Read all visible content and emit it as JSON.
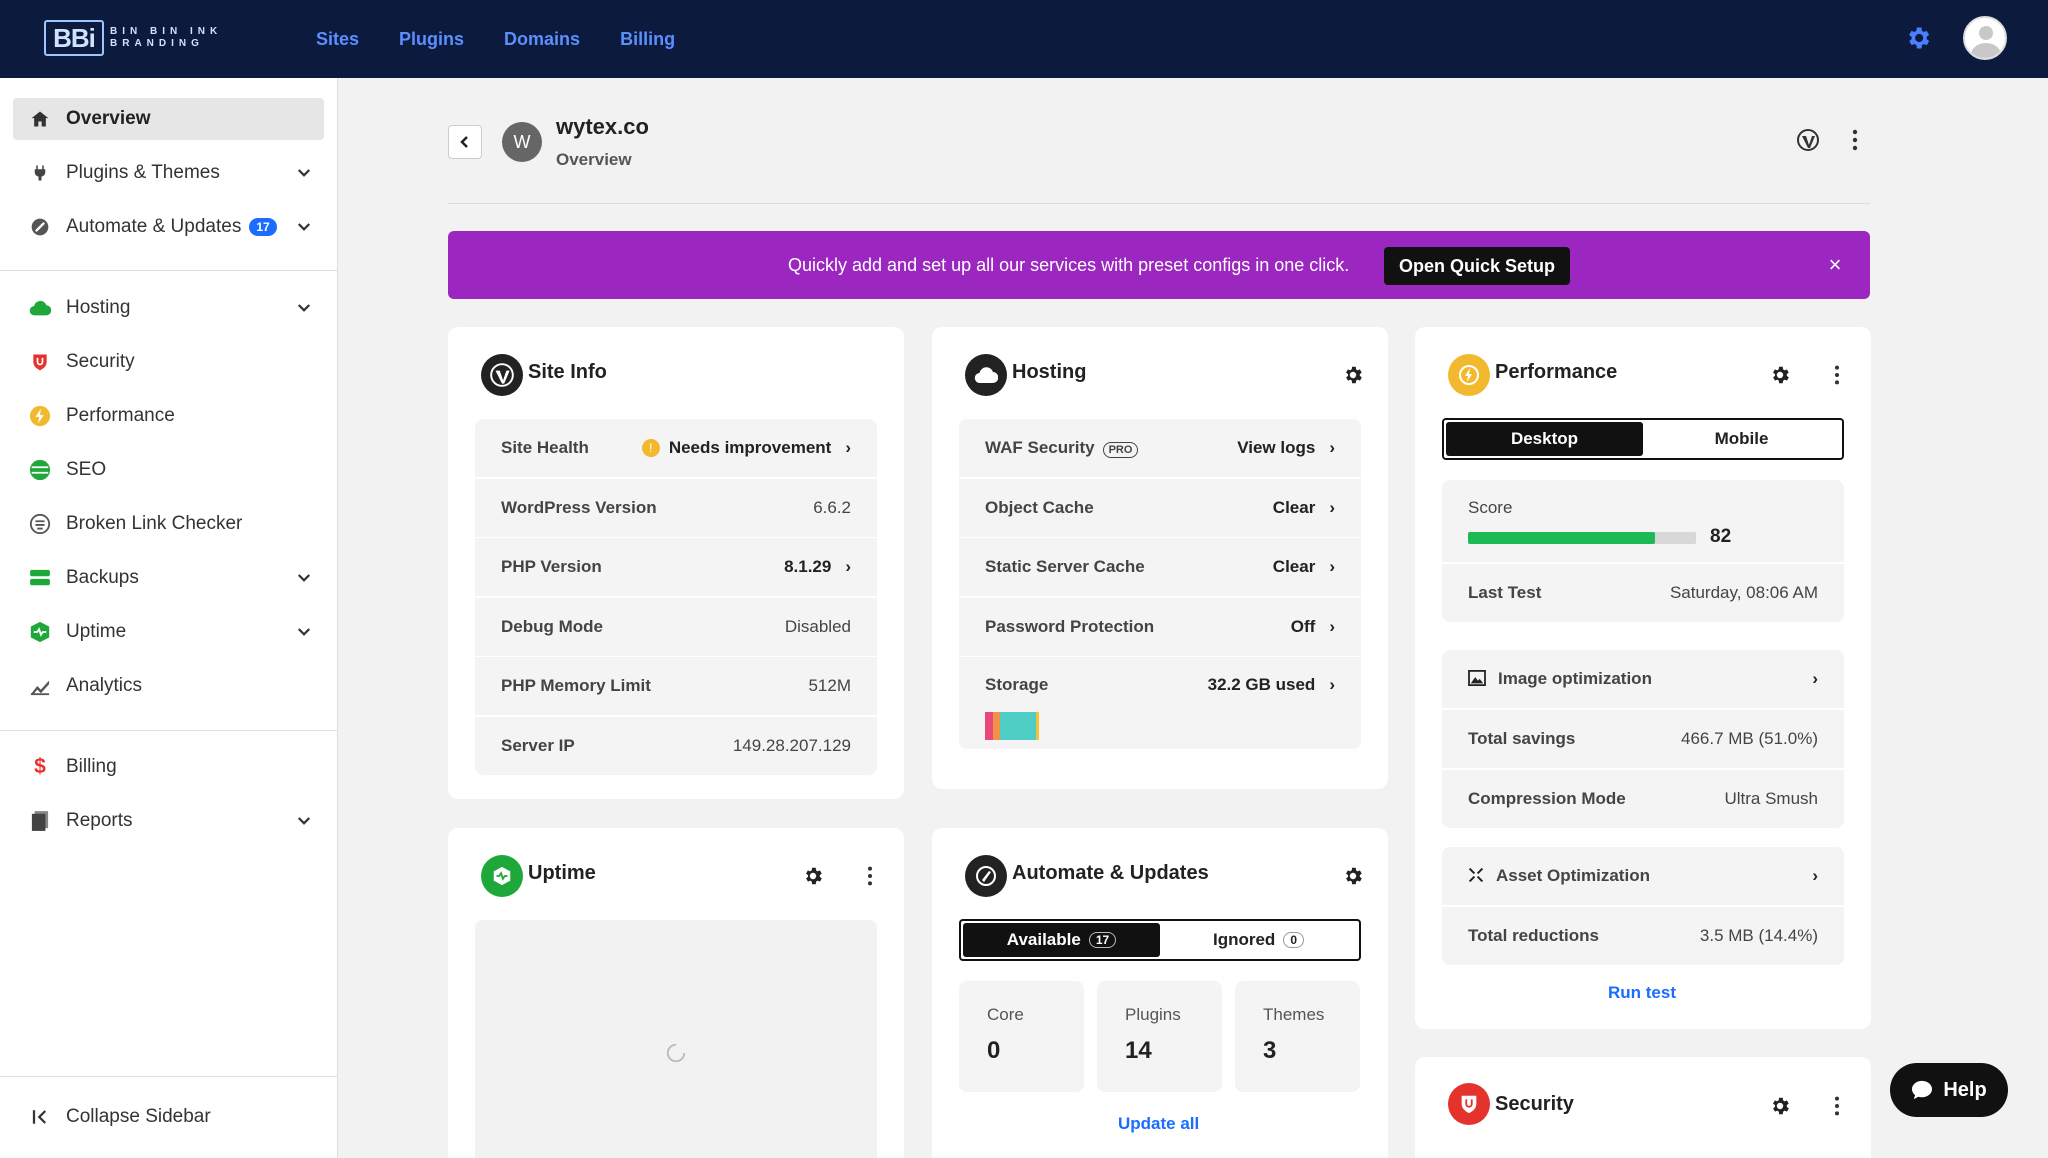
{
  "brand": {
    "mark": "BBi",
    "line1": "BIN BIN INK",
    "line2": "BRANDING"
  },
  "topnav": [
    "Sites",
    "Plugins",
    "Domains",
    "Billing"
  ],
  "sidebar": {
    "items": [
      {
        "label": "Overview",
        "icon": "home-icon"
      },
      {
        "label": "Plugins & Themes",
        "icon": "plug-icon"
      },
      {
        "label": "Automate & Updates",
        "icon": "automate-icon",
        "badge": "17"
      },
      {
        "label": "Hosting",
        "icon": "cloud-icon"
      },
      {
        "label": "Security",
        "icon": "shield-icon"
      },
      {
        "label": "Performance",
        "icon": "bolt-icon"
      },
      {
        "label": "SEO",
        "icon": "seo-icon"
      },
      {
        "label": "Broken Link Checker",
        "icon": "broken-link-icon"
      },
      {
        "label": "Backups",
        "icon": "backups-icon"
      },
      {
        "label": "Uptime",
        "icon": "uptime-icon"
      },
      {
        "label": "Analytics",
        "icon": "analytics-icon"
      },
      {
        "label": "Billing",
        "icon": "dollar-icon"
      },
      {
        "label": "Reports",
        "icon": "reports-icon"
      }
    ],
    "collapse_label": "Collapse Sidebar"
  },
  "header": {
    "avatar_letter": "W",
    "site_name": "wytex.co",
    "subtitle": "Overview"
  },
  "banner": {
    "text": "Quickly add and set up all our services with preset configs in one click.",
    "button": "Open Quick Setup",
    "close": "×"
  },
  "site_info": {
    "title": "Site Info",
    "rows": [
      {
        "label": "Site Health",
        "value": "Needs improvement",
        "warn": "!"
      },
      {
        "label": "WordPress Version",
        "value": "6.6.2"
      },
      {
        "label": "PHP Version",
        "value": "8.1.29"
      },
      {
        "label": "Debug Mode",
        "value": "Disabled"
      },
      {
        "label": "PHP Memory Limit",
        "value": "512M"
      },
      {
        "label": "Server IP",
        "value": "149.28.207.129"
      }
    ]
  },
  "hosting": {
    "title": "Hosting",
    "pro_badge": "PRO",
    "rows": [
      {
        "label": "WAF Security",
        "value": "View logs"
      },
      {
        "label": "Object Cache",
        "value": "Clear"
      },
      {
        "label": "Static Server Cache",
        "value": "Clear"
      },
      {
        "label": "Password Protection",
        "value": "Off"
      },
      {
        "label": "Storage",
        "value": "32.2 GB used"
      }
    ],
    "storage_colors": [
      "#e8487a",
      "#f29147",
      "#4ecdc4",
      "#f3c13a"
    ]
  },
  "performance": {
    "title": "Performance",
    "tabs": [
      "Desktop",
      "Mobile"
    ],
    "score_label": "Score",
    "score": "82",
    "score_fraction": 0.82,
    "last_test_label": "Last Test",
    "last_test_value": "Saturday, 08:06 AM",
    "image_opt_label": "Image optimization",
    "total_savings_label": "Total savings",
    "total_savings_value": "466.7 MB (51.0%)",
    "compression_label": "Compression Mode",
    "compression_value": "Ultra Smush",
    "asset_opt_label": "Asset Optimization",
    "total_reductions_label": "Total reductions",
    "total_reductions_value": "3.5 MB (14.4%)",
    "run_test": "Run test"
  },
  "uptime": {
    "title": "Uptime"
  },
  "automate": {
    "title": "Automate & Updates",
    "tabs": [
      {
        "label": "Available",
        "count": "17"
      },
      {
        "label": "Ignored",
        "count": "0"
      }
    ],
    "stats": [
      {
        "label": "Core",
        "value": "0"
      },
      {
        "label": "Plugins",
        "value": "14"
      },
      {
        "label": "Themes",
        "value": "3"
      }
    ],
    "update_all": "Update all"
  },
  "security": {
    "title": "Security"
  },
  "help": {
    "label": "Help"
  },
  "colors": {
    "topbar": "#0b1a3d",
    "accent": "#1a6dff",
    "banner": "#9b27c0",
    "score_bar": "#1db954",
    "green_icon": "#1fa83a",
    "red_icon": "#e5322d",
    "yellow_icon": "#f3b92e"
  }
}
